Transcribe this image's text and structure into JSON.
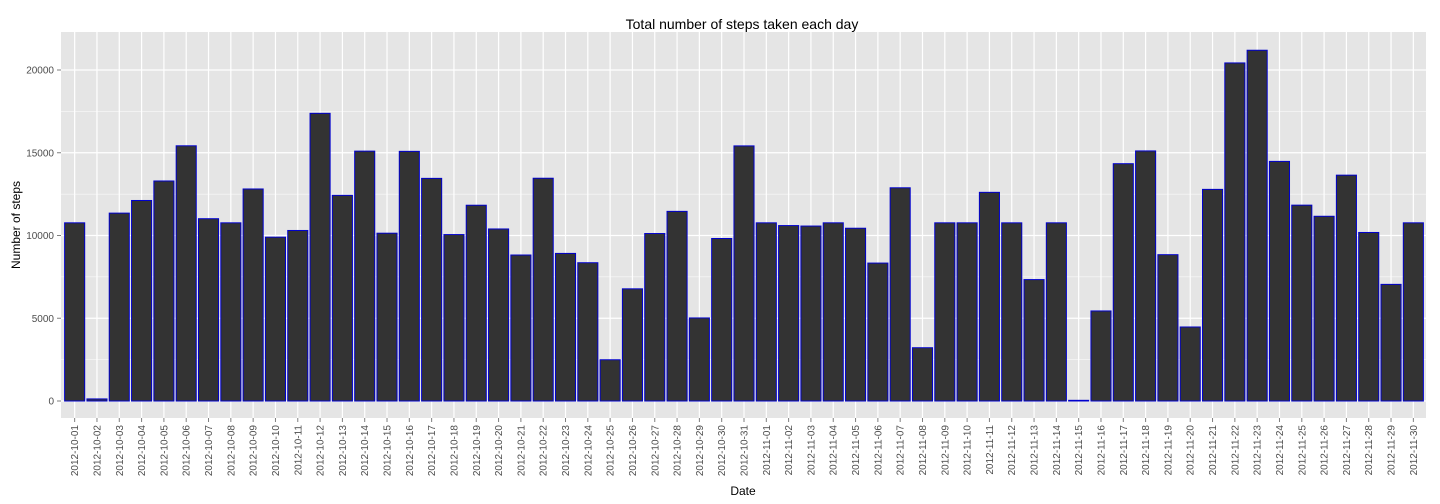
{
  "chart_data": {
    "type": "bar",
    "title": "Total number of steps taken each day",
    "xlabel": "Date",
    "ylabel": "Number of steps",
    "ylim": [
      0,
      22000
    ],
    "y_ticks": [
      0,
      5000,
      10000,
      15000,
      20000
    ],
    "grid": true,
    "colors": {
      "panel_background": "#e5e5e5",
      "grid": "#ffffff",
      "bar_fill": "#333333",
      "bar_outline": "#0000cd"
    },
    "categories": [
      "2012-10-01",
      "2012-10-02",
      "2012-10-03",
      "2012-10-04",
      "2012-10-05",
      "2012-10-06",
      "2012-10-07",
      "2012-10-08",
      "2012-10-09",
      "2012-10-10",
      "2012-10-11",
      "2012-10-12",
      "2012-10-13",
      "2012-10-14",
      "2012-10-15",
      "2012-10-16",
      "2012-10-17",
      "2012-10-18",
      "2012-10-19",
      "2012-10-20",
      "2012-10-21",
      "2012-10-22",
      "2012-10-23",
      "2012-10-24",
      "2012-10-25",
      "2012-10-26",
      "2012-10-27",
      "2012-10-28",
      "2012-10-29",
      "2012-10-30",
      "2012-10-31",
      "2012-11-01",
      "2012-11-02",
      "2012-11-03",
      "2012-11-04",
      "2012-11-05",
      "2012-11-06",
      "2012-11-07",
      "2012-11-08",
      "2012-11-09",
      "2012-11-10",
      "2012-11-11",
      "2012-11-12",
      "2012-11-13",
      "2012-11-14",
      "2012-11-15",
      "2012-11-16",
      "2012-11-17",
      "2012-11-18",
      "2012-11-19",
      "2012-11-20",
      "2012-11-21",
      "2012-11-22",
      "2012-11-23",
      "2012-11-24",
      "2012-11-25",
      "2012-11-26",
      "2012-11-27",
      "2012-11-28",
      "2012-11-29",
      "2012-11-30"
    ],
    "values": [
      10766,
      126,
      11352,
      12116,
      13294,
      15420,
      11015,
      10766,
      12811,
      9900,
      10304,
      17382,
      12426,
      15098,
      10139,
      15084,
      13452,
      10056,
      11829,
      10395,
      8821,
      13460,
      8918,
      8355,
      2492,
      6778,
      10119,
      11458,
      5018,
      9819,
      15414,
      10766,
      10600,
      10571,
      10766,
      10439,
      8334,
      12883,
      3219,
      10766,
      10766,
      12608,
      10765,
      7336,
      10766,
      41,
      5441,
      14339,
      15110,
      8841,
      4472,
      12787,
      20427,
      21194,
      14478,
      11834,
      11162,
      13646,
      10183,
      7047,
      10766
    ]
  }
}
